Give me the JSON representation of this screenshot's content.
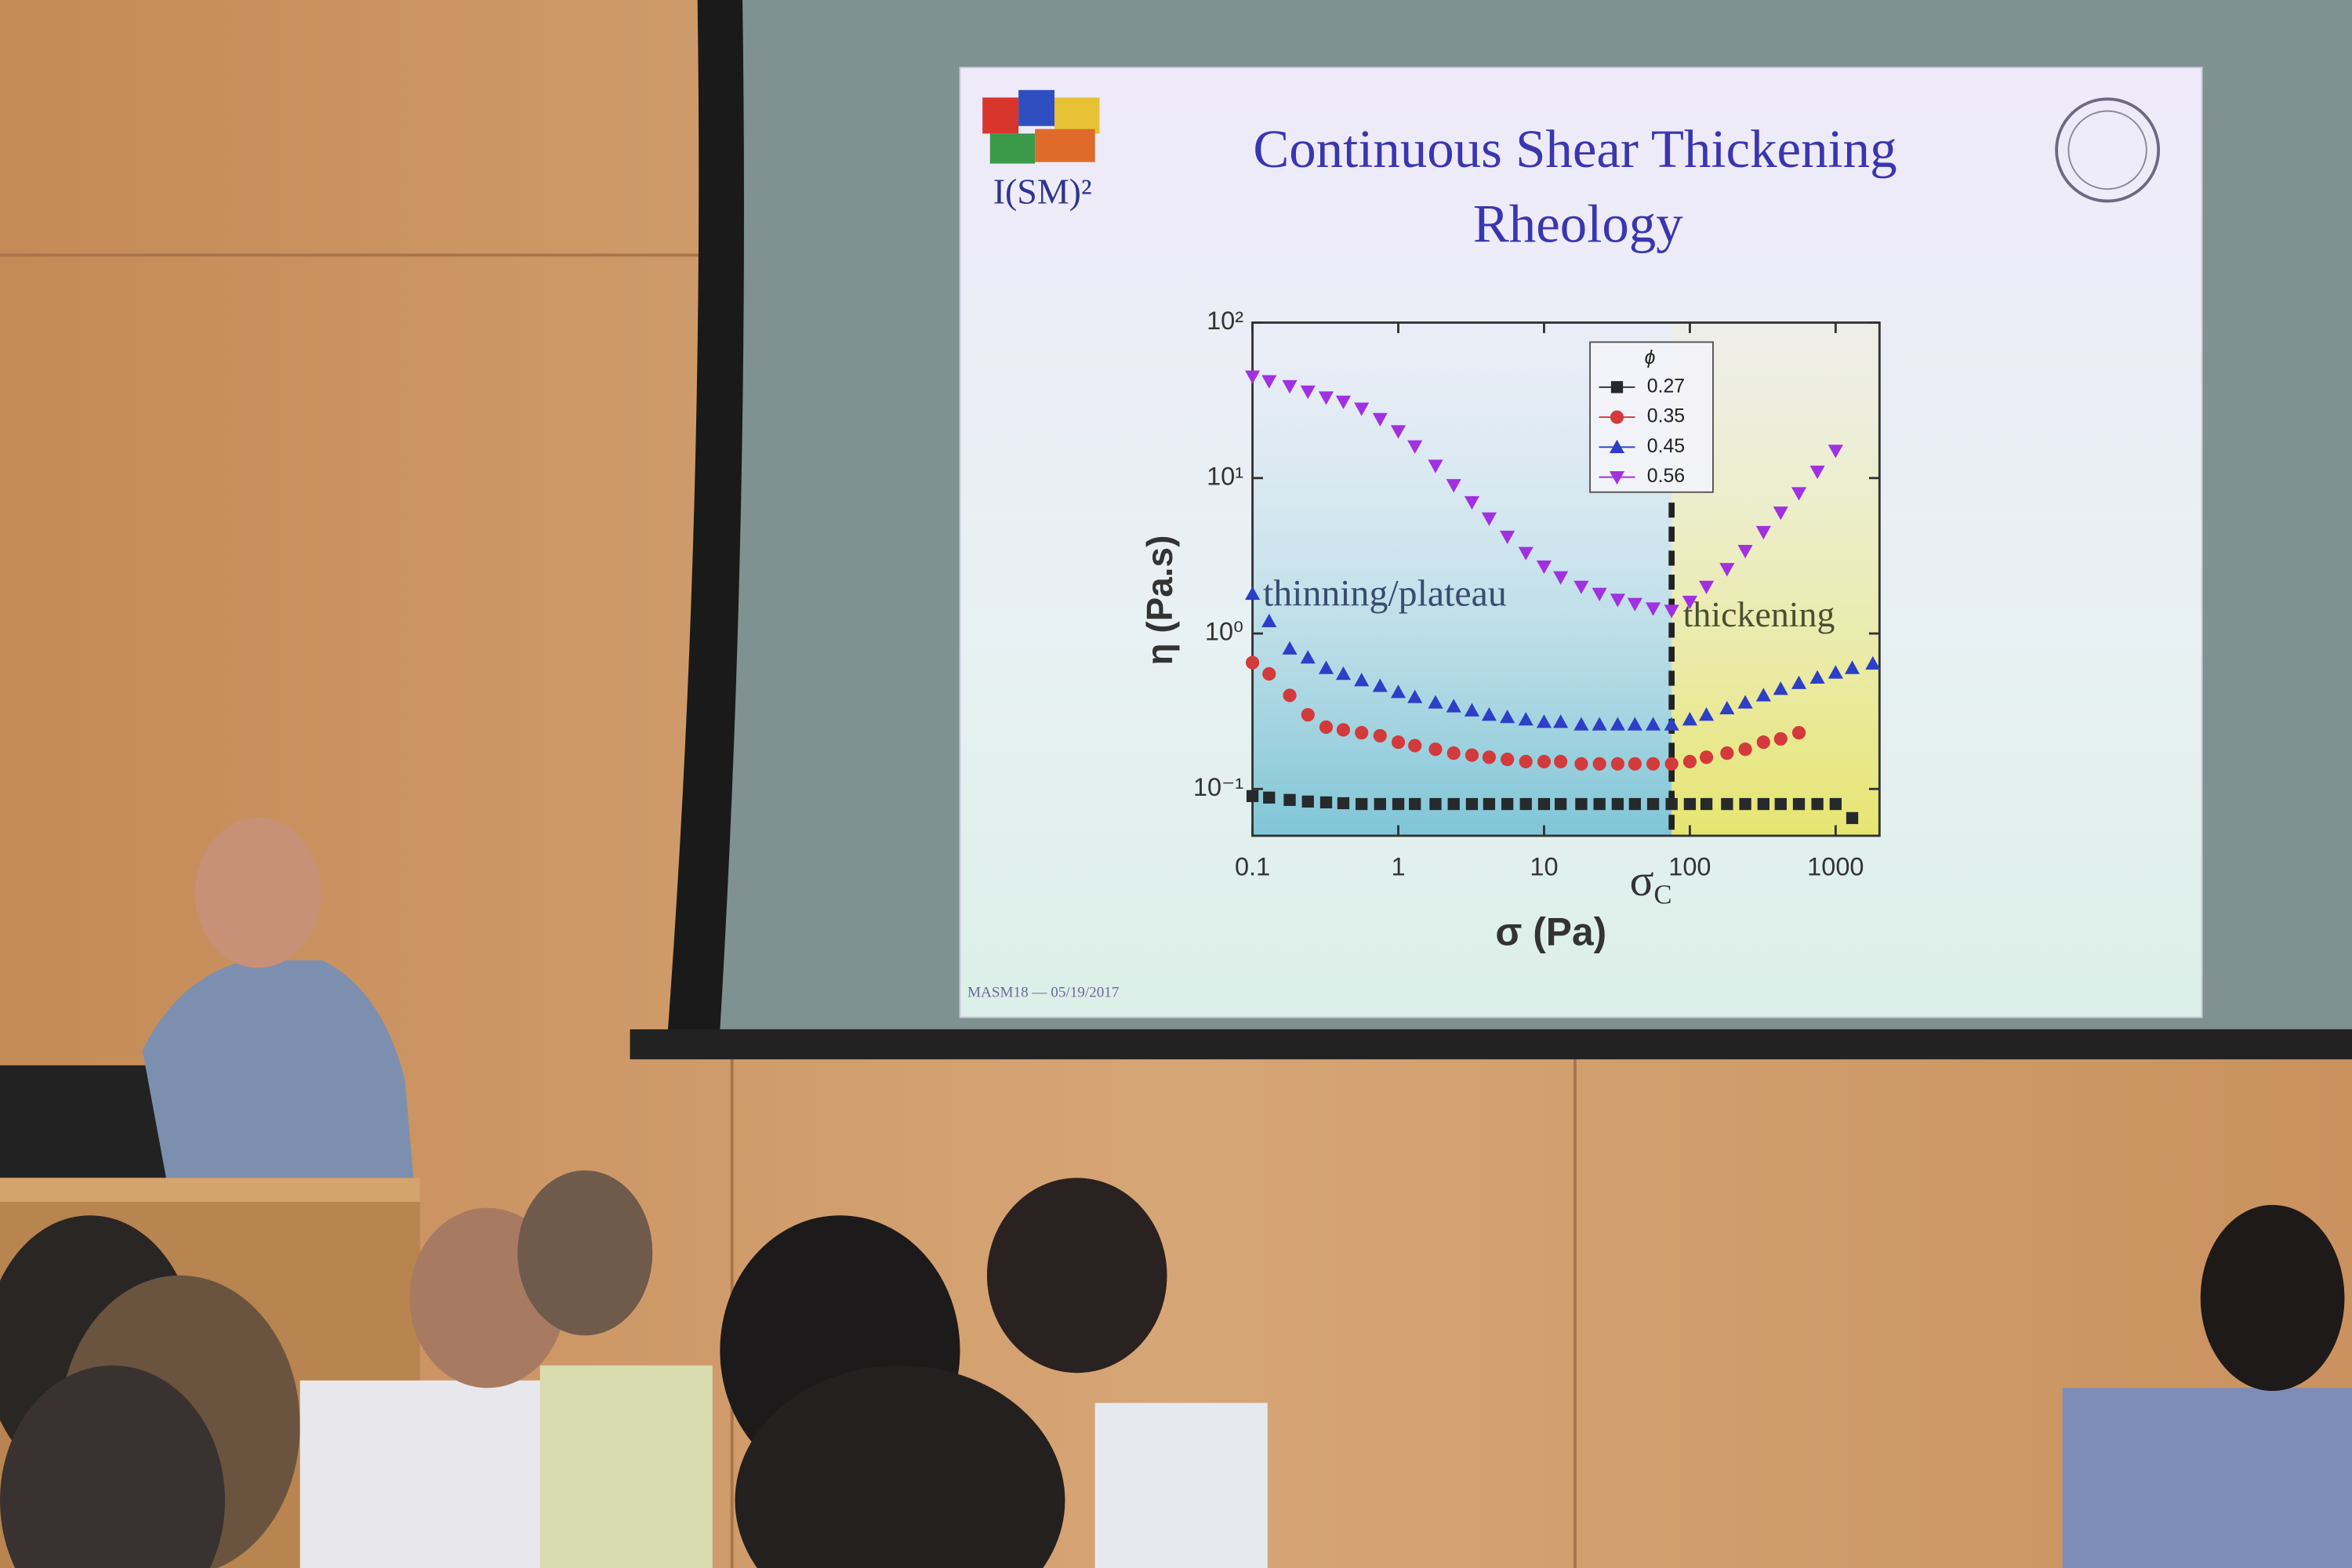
{
  "slide": {
    "title_lines": [
      "Continuous Shear Thickening",
      "Rheology"
    ],
    "logo_text": "I(SM)²",
    "footer": "MASM18 — 05/19/2017"
  },
  "chart_data": {
    "type": "scatter",
    "xlabel": "σ (Pa)",
    "ylabel": "η (Pa.s)",
    "xscale": "log",
    "yscale": "log",
    "xlim": [
      0.1,
      2000
    ],
    "ylim": [
      0.05,
      100
    ],
    "xticks": [
      0.1,
      1,
      10,
      100,
      1000
    ],
    "yticks": [
      {
        "value": 0.1,
        "label": "10⁻¹"
      },
      {
        "value": 1,
        "label": "10⁰"
      },
      {
        "value": 10,
        "label": "10¹"
      },
      {
        "value": 100,
        "label": "10²"
      }
    ],
    "legend_title": "ϕ",
    "legend_position": "upper right",
    "critical_stress": {
      "label": "σ",
      "subscript": "C",
      "value": 75
    },
    "annotations": [
      "thinning/plateau",
      "thickening"
    ],
    "series": [
      {
        "name": "0.27",
        "color": "#262a2c",
        "marker": "square",
        "x": [
          0.1,
          0.13,
          0.18,
          0.24,
          0.32,
          0.42,
          0.56,
          0.75,
          1,
          1.3,
          1.8,
          2.4,
          3.2,
          4.2,
          5.6,
          7.5,
          10,
          13,
          18,
          24,
          32,
          42,
          56,
          75,
          100,
          130,
          180,
          240,
          320,
          420,
          560,
          750,
          1000,
          1300
        ],
        "values": [
          0.09,
          0.088,
          0.085,
          0.083,
          0.082,
          0.081,
          0.08,
          0.08,
          0.08,
          0.08,
          0.08,
          0.08,
          0.08,
          0.08,
          0.08,
          0.08,
          0.08,
          0.08,
          0.08,
          0.08,
          0.08,
          0.08,
          0.08,
          0.08,
          0.08,
          0.08,
          0.08,
          0.08,
          0.08,
          0.08,
          0.08,
          0.08,
          0.08,
          0.065
        ]
      },
      {
        "name": "0.35",
        "color": "#d33a3c",
        "marker": "circle",
        "x": [
          0.1,
          0.13,
          0.18,
          0.24,
          0.32,
          0.42,
          0.56,
          0.75,
          1,
          1.3,
          1.8,
          2.4,
          3.2,
          4.2,
          5.6,
          7.5,
          10,
          13,
          18,
          24,
          32,
          42,
          56,
          75,
          100,
          130,
          180,
          240,
          320,
          420,
          560
        ],
        "values": [
          0.65,
          0.55,
          0.4,
          0.3,
          0.25,
          0.24,
          0.23,
          0.22,
          0.2,
          0.19,
          0.18,
          0.17,
          0.165,
          0.16,
          0.155,
          0.15,
          0.15,
          0.15,
          0.145,
          0.145,
          0.145,
          0.145,
          0.145,
          0.145,
          0.15,
          0.16,
          0.17,
          0.18,
          0.2,
          0.21,
          0.23
        ]
      },
      {
        "name": "0.45",
        "color": "#2c3fc6",
        "marker": "triangle-up",
        "x": [
          0.1,
          0.13,
          0.18,
          0.24,
          0.32,
          0.42,
          0.56,
          0.75,
          1,
          1.3,
          1.8,
          2.4,
          3.2,
          4.2,
          5.6,
          7.5,
          10,
          13,
          18,
          24,
          32,
          42,
          56,
          75,
          100,
          130,
          180,
          240,
          320,
          420,
          560,
          750,
          1000,
          1300,
          1800
        ],
        "values": [
          1.8,
          1.2,
          0.8,
          0.7,
          0.6,
          0.55,
          0.5,
          0.46,
          0.42,
          0.39,
          0.36,
          0.34,
          0.32,
          0.3,
          0.29,
          0.28,
          0.27,
          0.27,
          0.26,
          0.26,
          0.26,
          0.26,
          0.26,
          0.26,
          0.28,
          0.3,
          0.33,
          0.36,
          0.4,
          0.44,
          0.48,
          0.52,
          0.56,
          0.6,
          0.64
        ]
      },
      {
        "name": "0.56",
        "color": "#a131e0",
        "marker": "triangle-down",
        "x": [
          0.1,
          0.13,
          0.18,
          0.24,
          0.32,
          0.42,
          0.56,
          0.75,
          1,
          1.3,
          1.8,
          2.4,
          3.2,
          4.2,
          5.6,
          7.5,
          10,
          13,
          18,
          24,
          32,
          42,
          56,
          75,
          100,
          130,
          180,
          240,
          320,
          420,
          560,
          750,
          1000
        ],
        "values": [
          45,
          42,
          39,
          36,
          33,
          31,
          28,
          24,
          20,
          16,
          12,
          9,
          7,
          5.5,
          4.2,
          3.3,
          2.7,
          2.3,
          2,
          1.8,
          1.65,
          1.55,
          1.45,
          1.4,
          1.6,
          2,
          2.6,
          3.4,
          4.5,
          6,
          8,
          11,
          15
        ]
      }
    ]
  }
}
